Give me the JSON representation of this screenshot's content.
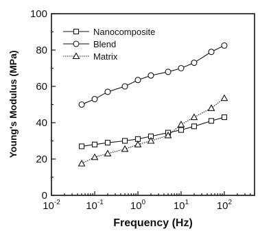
{
  "chart_data": {
    "type": "line",
    "xlabel": "Frequency (Hz)",
    "ylabel": "Young's Modulus (MPa)",
    "xscale": "log",
    "xlim": [
      0.01,
      500
    ],
    "ylim": [
      0,
      100
    ],
    "x_ticks": [
      {
        "value": 0.01,
        "base": "10",
        "exp": "-2"
      },
      {
        "value": 0.1,
        "base": "10",
        "exp": "-1"
      },
      {
        "value": 1,
        "base": "10",
        "exp": "0"
      },
      {
        "value": 10,
        "base": "10",
        "exp": "1"
      },
      {
        "value": 100,
        "base": "10",
        "exp": "2"
      }
    ],
    "y_ticks": [
      "0",
      "20",
      "40",
      "60",
      "80",
      "100"
    ],
    "grid": false,
    "legend_position": "top-left",
    "x": [
      0.05,
      0.1,
      0.2,
      0.5,
      1,
      2,
      5,
      10,
      20,
      50,
      100
    ],
    "series": [
      {
        "name": "Nanocomposite",
        "marker": "square",
        "line": "solid",
        "values": [
          27,
          28,
          29,
          30,
          31,
          32.5,
          34.5,
          36,
          38,
          41,
          43
        ]
      },
      {
        "name": "Blend",
        "marker": "circle",
        "line": "solid",
        "values": [
          50,
          53,
          57,
          60,
          63.5,
          66,
          68,
          70,
          73,
          79,
          82.5
        ]
      },
      {
        "name": "Matrix",
        "marker": "triangle",
        "line": "dotted",
        "values": [
          17.5,
          21,
          23,
          25.5,
          28,
          30,
          33,
          39,
          43,
          48,
          53.5
        ]
      }
    ]
  }
}
